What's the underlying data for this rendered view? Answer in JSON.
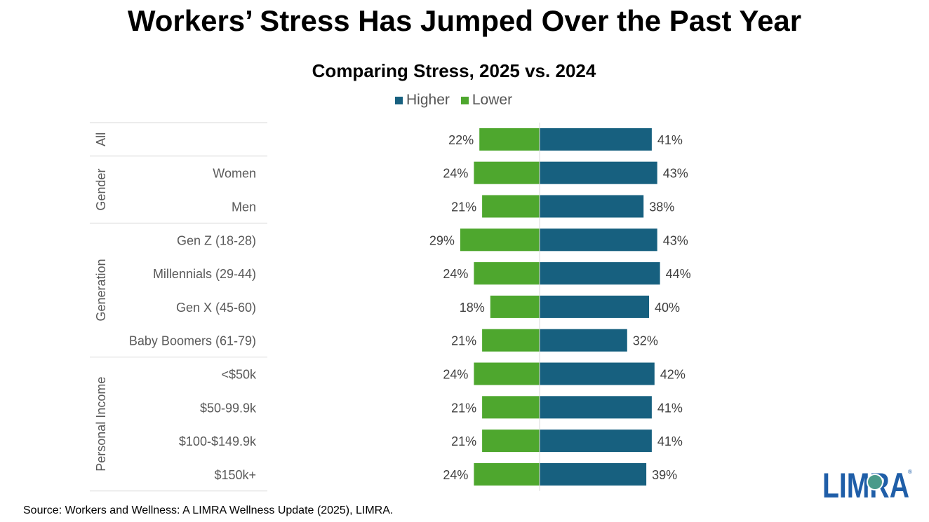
{
  "title": "Workers’ Stress Has Jumped Over the Past Year",
  "source": "Source: Workers and Wellness: A LIMRA Wellness Update (2025), LIMRA.",
  "logo_text": "LIMRA",
  "chart_data": {
    "type": "bar",
    "orientation": "horizontal-diverging",
    "title": "Comparing Stress, 2025 vs. 2024",
    "legend_position": "top",
    "groups": [
      {
        "name": "All",
        "categories": [
          ""
        ]
      },
      {
        "name": "Gender",
        "categories": [
          "Women",
          "Men"
        ]
      },
      {
        "name": "Generation",
        "categories": [
          "Gen Z (18-28)",
          "Millennials (29-44)",
          "Gen X (45-60)",
          "Baby Boomers (61-79)"
        ]
      },
      {
        "name": "Personal Income",
        "categories": [
          "<$50k",
          "$50-99.9k",
          "$100-$149.9k",
          "$150k+"
        ]
      }
    ],
    "series": [
      {
        "name": "Higher",
        "color": "#17607f",
        "direction": "right",
        "values": [
          41,
          43,
          38,
          43,
          44,
          40,
          32,
          42,
          41,
          41,
          39
        ],
        "labels": [
          "41%",
          "43%",
          "38%",
          "43%",
          "44%",
          "40%",
          "32%",
          "42%",
          "41%",
          "41%",
          "39%"
        ]
      },
      {
        "name": "Lower",
        "color": "#4ea72e",
        "direction": "left",
        "values": [
          22,
          24,
          21,
          29,
          24,
          18,
          21,
          24,
          21,
          21,
          24
        ],
        "labels": [
          "22%",
          "24%",
          "21%",
          "29%",
          "24%",
          "18%",
          "21%",
          "24%",
          "21%",
          "21%",
          "24%"
        ]
      }
    ],
    "grid": false
  }
}
